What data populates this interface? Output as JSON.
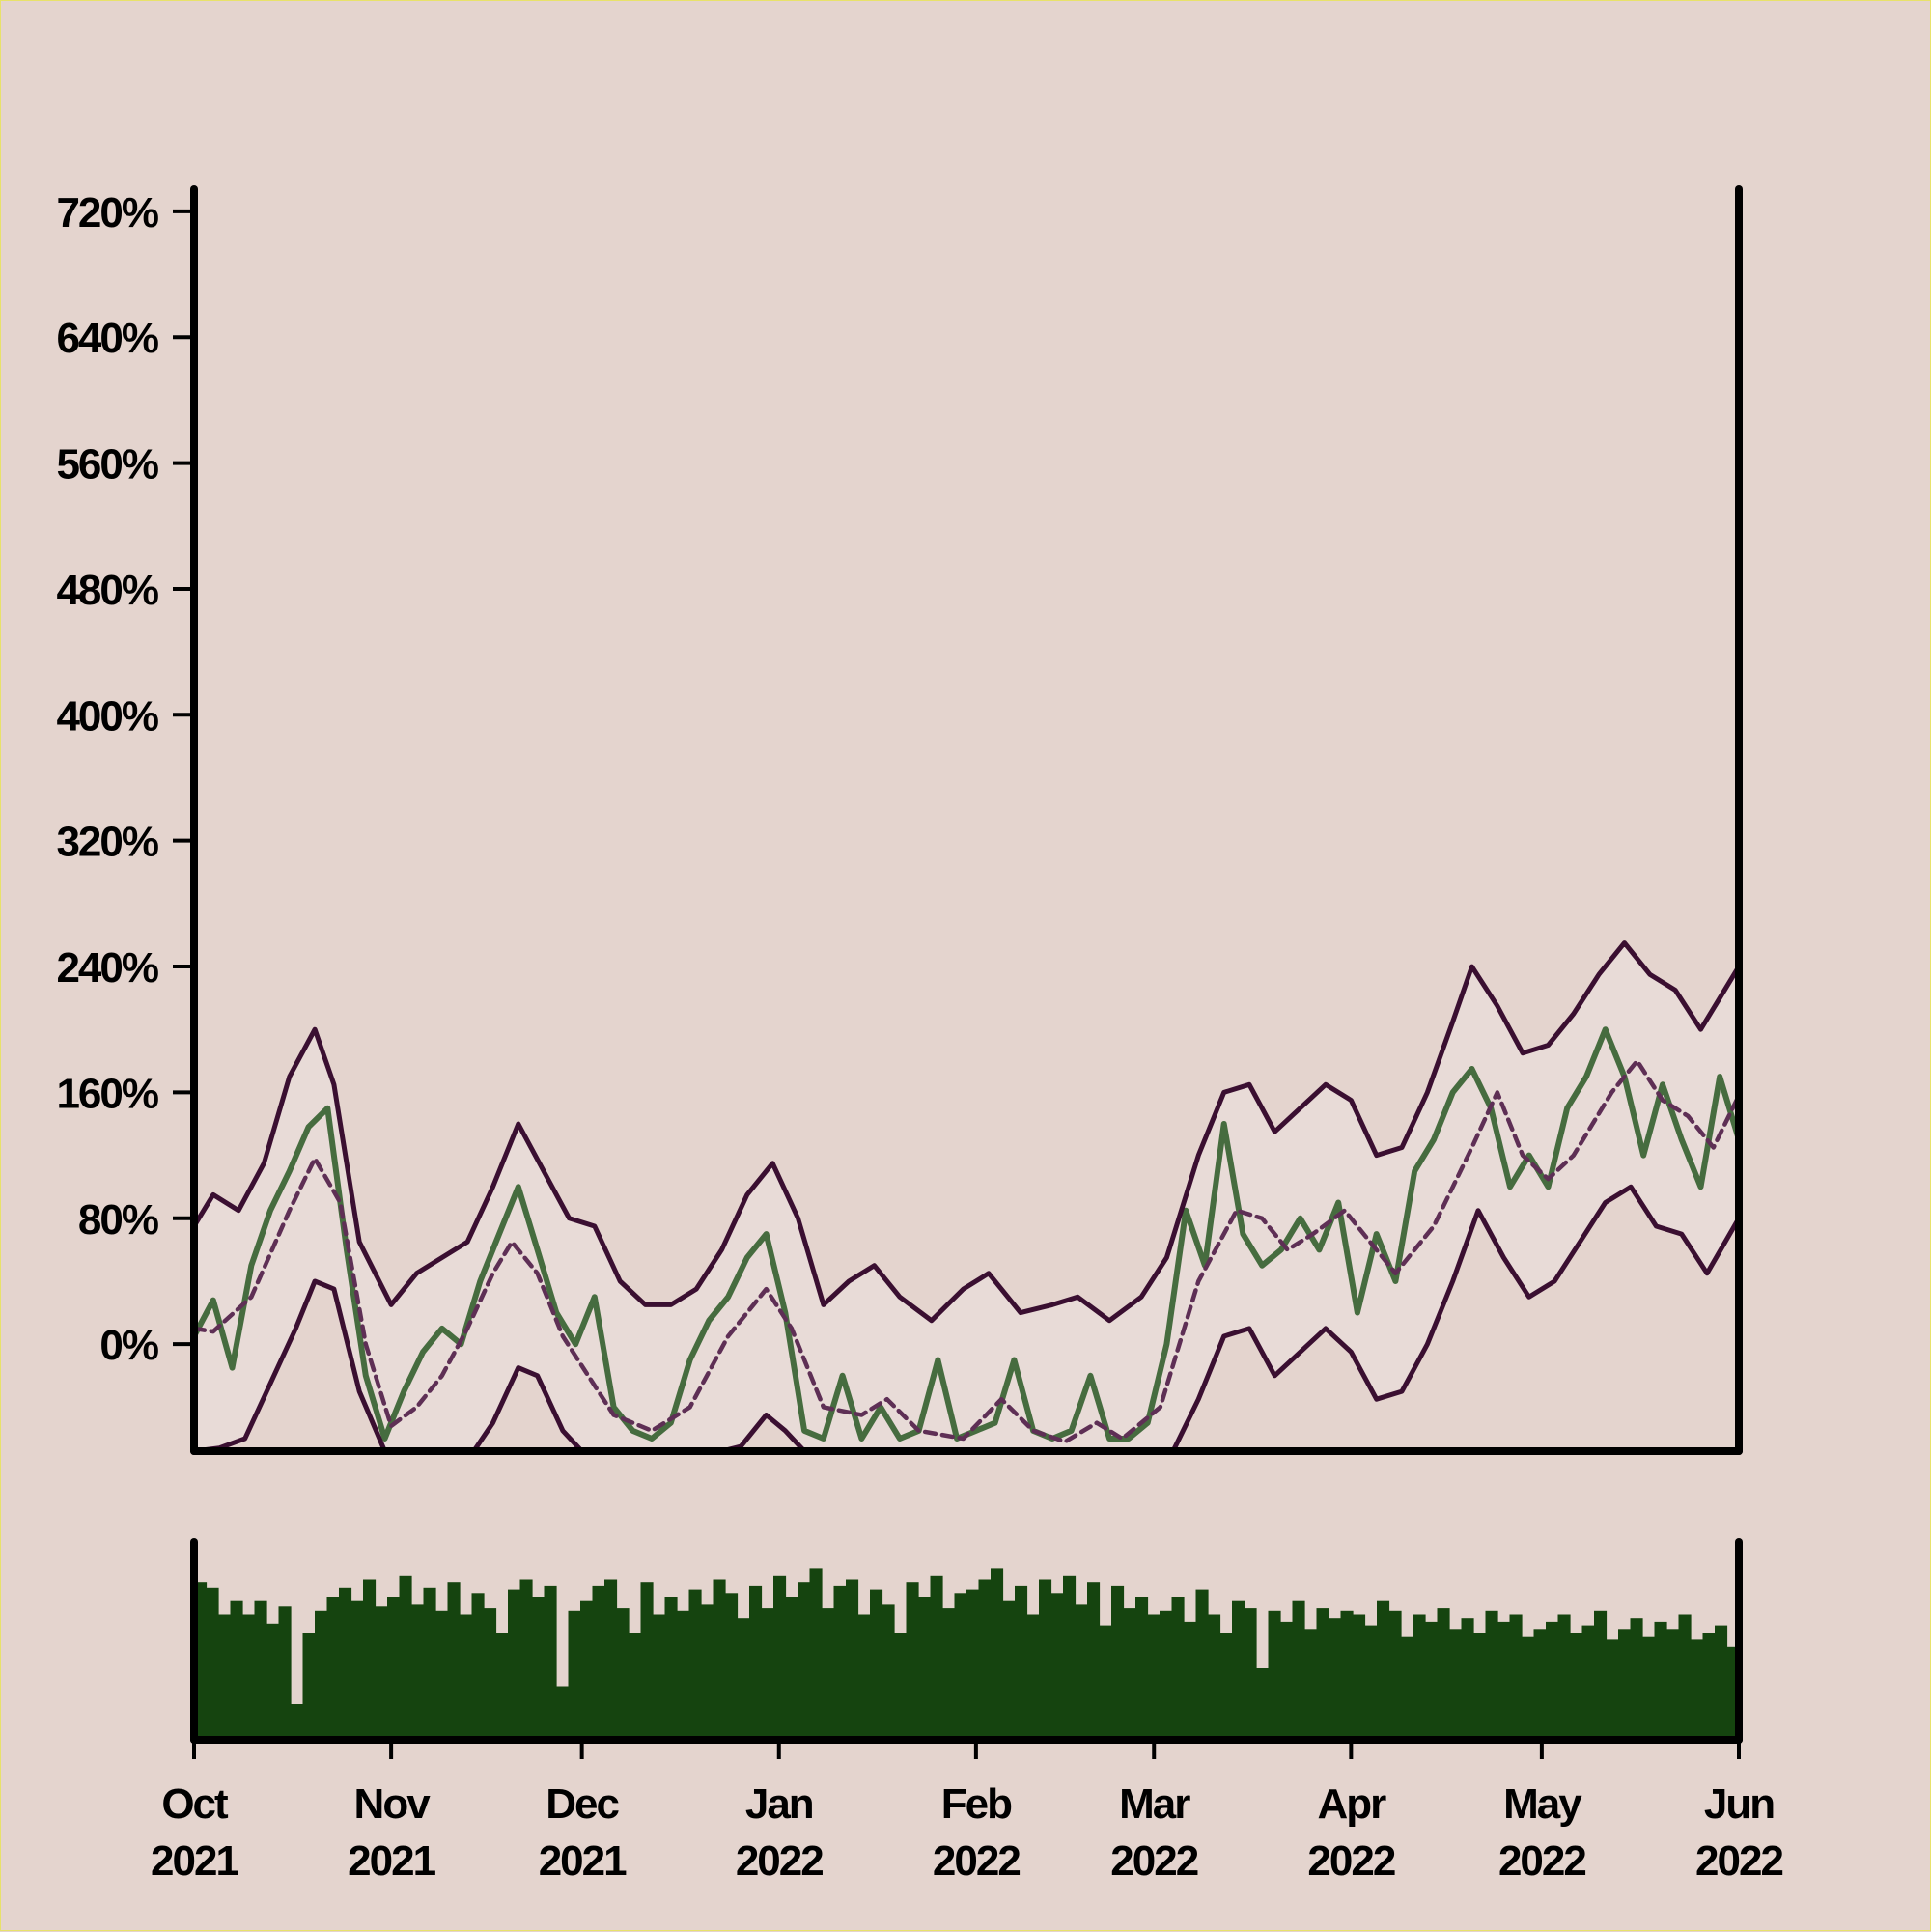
{
  "chart_data": {
    "type": "line",
    "title": "",
    "xlabel": "",
    "ylabel": "",
    "x_tick_labels": [
      [
        "Oct",
        "2021"
      ],
      [
        "Nov",
        "2021"
      ],
      [
        "Dec",
        "2021"
      ],
      [
        "Jan",
        "2022"
      ],
      [
        "Feb",
        "2022"
      ],
      [
        "Mar",
        "2022"
      ],
      [
        "Apr",
        "2022"
      ],
      [
        "May",
        "2022"
      ],
      [
        "Jun",
        "2022"
      ]
    ],
    "x_ticks": [
      "2021-10-01",
      "2021-11-01",
      "2021-12-01",
      "2022-01-01",
      "2022-02-01",
      "2022-03-01",
      "2022-04-01",
      "2022-05-01",
      "2022-06-01"
    ],
    "xlim": [
      "2021-10-01",
      "2022-06-01"
    ],
    "y_tick_labels": [
      "0%",
      "80%",
      "160%",
      "240%",
      "320%",
      "400%",
      "480%",
      "560%",
      "640%",
      "720%"
    ],
    "y_ticks": [
      0,
      80,
      160,
      240,
      320,
      400,
      480,
      560,
      640,
      720
    ],
    "ylim": [
      -68,
      734
    ],
    "grid": false,
    "legend": "none",
    "colors": {
      "background": "#e4d4ce",
      "band_fill": "#e8dbd7",
      "band_line": "#3a0f31",
      "moving_average": "#5e2f55",
      "price_line": "#466c3f",
      "volume_bars": "#15440f",
      "axis": "#000000"
    },
    "series": [
      {
        "role": "price",
        "style": "solid",
        "points": [
          [
            "2021-10-01",
            5
          ],
          [
            "2021-10-04",
            28
          ],
          [
            "2021-10-07",
            -15
          ],
          [
            "2021-10-10",
            50
          ],
          [
            "2021-10-13",
            85
          ],
          [
            "2021-10-16",
            110
          ],
          [
            "2021-10-19",
            138
          ],
          [
            "2021-10-22",
            150
          ],
          [
            "2021-10-25",
            60
          ],
          [
            "2021-10-28",
            -20
          ],
          [
            "2021-10-31",
            -60
          ],
          [
            "2021-11-03",
            -30
          ],
          [
            "2021-11-06",
            -5
          ],
          [
            "2021-11-09",
            10
          ],
          [
            "2021-11-12",
            0
          ],
          [
            "2021-11-15",
            40
          ],
          [
            "2021-11-18",
            70
          ],
          [
            "2021-11-21",
            100
          ],
          [
            "2021-11-24",
            60
          ],
          [
            "2021-11-27",
            20
          ],
          [
            "2021-11-30",
            0
          ],
          [
            "2021-12-03",
            30
          ],
          [
            "2021-12-06",
            -40
          ],
          [
            "2021-12-09",
            -55
          ],
          [
            "2021-12-12",
            -60
          ],
          [
            "2021-12-15",
            -50
          ],
          [
            "2021-12-18",
            -10
          ],
          [
            "2021-12-21",
            15
          ],
          [
            "2021-12-24",
            30
          ],
          [
            "2021-12-27",
            55
          ],
          [
            "2021-12-30",
            70
          ],
          [
            "2022-01-02",
            20
          ],
          [
            "2022-01-05",
            -55
          ],
          [
            "2022-01-08",
            -60
          ],
          [
            "2022-01-11",
            -20
          ],
          [
            "2022-01-14",
            -60
          ],
          [
            "2022-01-17",
            -40
          ],
          [
            "2022-01-20",
            -60
          ],
          [
            "2022-01-23",
            -55
          ],
          [
            "2022-01-26",
            -10
          ],
          [
            "2022-01-29",
            -60
          ],
          [
            "2022-02-01",
            -55
          ],
          [
            "2022-02-04",
            -50
          ],
          [
            "2022-02-07",
            -10
          ],
          [
            "2022-02-10",
            -55
          ],
          [
            "2022-02-13",
            -60
          ],
          [
            "2022-02-16",
            -55
          ],
          [
            "2022-02-19",
            -20
          ],
          [
            "2022-02-22",
            -60
          ],
          [
            "2022-02-25",
            -60
          ],
          [
            "2022-02-28",
            -50
          ],
          [
            "2022-03-03",
            0
          ],
          [
            "2022-03-06",
            85
          ],
          [
            "2022-03-09",
            50
          ],
          [
            "2022-03-12",
            140
          ],
          [
            "2022-03-15",
            70
          ],
          [
            "2022-03-18",
            50
          ],
          [
            "2022-03-21",
            60
          ],
          [
            "2022-03-24",
            80
          ],
          [
            "2022-03-27",
            60
          ],
          [
            "2022-03-30",
            90
          ],
          [
            "2022-04-02",
            20
          ],
          [
            "2022-04-05",
            70
          ],
          [
            "2022-04-08",
            40
          ],
          [
            "2022-04-11",
            110
          ],
          [
            "2022-04-14",
            130
          ],
          [
            "2022-04-17",
            160
          ],
          [
            "2022-04-20",
            175
          ],
          [
            "2022-04-23",
            150
          ],
          [
            "2022-04-26",
            100
          ],
          [
            "2022-04-29",
            120
          ],
          [
            "2022-05-02",
            100
          ],
          [
            "2022-05-05",
            150
          ],
          [
            "2022-05-08",
            170
          ],
          [
            "2022-05-11",
            200
          ],
          [
            "2022-05-14",
            170
          ],
          [
            "2022-05-17",
            120
          ],
          [
            "2022-05-20",
            165
          ],
          [
            "2022-05-23",
            130
          ],
          [
            "2022-05-26",
            100
          ],
          [
            "2022-05-29",
            170
          ],
          [
            "2022-06-01",
            130
          ]
        ]
      },
      {
        "role": "moving-average",
        "style": "dashed",
        "points": [
          [
            "2021-10-01",
            10
          ],
          [
            "2021-10-04",
            8
          ],
          [
            "2021-10-10",
            30
          ],
          [
            "2021-10-16",
            85
          ],
          [
            "2021-10-20",
            118
          ],
          [
            "2021-10-24",
            90
          ],
          [
            "2021-10-28",
            0
          ],
          [
            "2021-11-01",
            -52
          ],
          [
            "2021-11-05",
            -40
          ],
          [
            "2021-11-09",
            -20
          ],
          [
            "2021-11-13",
            10
          ],
          [
            "2021-11-17",
            45
          ],
          [
            "2021-11-20",
            65
          ],
          [
            "2021-11-24",
            45
          ],
          [
            "2021-11-28",
            5
          ],
          [
            "2021-12-02",
            -20
          ],
          [
            "2021-12-06",
            -45
          ],
          [
            "2021-12-12",
            -55
          ],
          [
            "2021-12-18",
            -40
          ],
          [
            "2021-12-24",
            5
          ],
          [
            "2021-12-30",
            35
          ],
          [
            "2022-01-03",
            10
          ],
          [
            "2022-01-08",
            -40
          ],
          [
            "2022-01-14",
            -45
          ],
          [
            "2022-01-18",
            -35
          ],
          [
            "2022-01-23",
            -55
          ],
          [
            "2022-01-30",
            -60
          ],
          [
            "2022-02-05",
            -35
          ],
          [
            "2022-02-10",
            -55
          ],
          [
            "2022-02-15",
            -62
          ],
          [
            "2022-02-20",
            -50
          ],
          [
            "2022-02-24",
            -60
          ],
          [
            "2022-03-02",
            -40
          ],
          [
            "2022-03-08",
            40
          ],
          [
            "2022-03-14",
            85
          ],
          [
            "2022-03-18",
            80
          ],
          [
            "2022-03-22",
            60
          ],
          [
            "2022-03-26",
            70
          ],
          [
            "2022-03-31",
            85
          ],
          [
            "2022-04-04",
            65
          ],
          [
            "2022-04-08",
            45
          ],
          [
            "2022-04-14",
            75
          ],
          [
            "2022-04-20",
            125
          ],
          [
            "2022-04-24",
            160
          ],
          [
            "2022-04-28",
            120
          ],
          [
            "2022-05-02",
            105
          ],
          [
            "2022-05-06",
            120
          ],
          [
            "2022-05-12",
            160
          ],
          [
            "2022-05-16",
            180
          ],
          [
            "2022-05-20",
            155
          ],
          [
            "2022-05-24",
            145
          ],
          [
            "2022-05-28",
            125
          ],
          [
            "2022-06-01",
            158
          ]
        ]
      },
      {
        "role": "upper-band",
        "style": "solid",
        "points": [
          [
            "2021-10-01",
            75
          ],
          [
            "2021-10-04",
            95
          ],
          [
            "2021-10-08",
            85
          ],
          [
            "2021-10-12",
            115
          ],
          [
            "2021-10-16",
            170
          ],
          [
            "2021-10-20",
            200
          ],
          [
            "2021-10-23",
            165
          ],
          [
            "2021-10-27",
            65
          ],
          [
            "2021-11-01",
            25
          ],
          [
            "2021-11-05",
            45
          ],
          [
            "2021-11-09",
            55
          ],
          [
            "2021-11-13",
            65
          ],
          [
            "2021-11-17",
            100
          ],
          [
            "2021-11-21",
            140
          ],
          [
            "2021-11-25",
            110
          ],
          [
            "2021-11-29",
            80
          ],
          [
            "2021-12-03",
            75
          ],
          [
            "2021-12-07",
            40
          ],
          [
            "2021-12-11",
            25
          ],
          [
            "2021-12-15",
            25
          ],
          [
            "2021-12-19",
            35
          ],
          [
            "2021-12-23",
            60
          ],
          [
            "2021-12-27",
            95
          ],
          [
            "2021-12-31",
            115
          ],
          [
            "2022-01-04",
            80
          ],
          [
            "2022-01-08",
            25
          ],
          [
            "2022-01-12",
            40
          ],
          [
            "2022-01-16",
            50
          ],
          [
            "2022-01-20",
            30
          ],
          [
            "2022-01-25",
            15
          ],
          [
            "2022-01-30",
            35
          ],
          [
            "2022-02-03",
            45
          ],
          [
            "2022-02-08",
            20
          ],
          [
            "2022-02-13",
            25
          ],
          [
            "2022-02-17",
            30
          ],
          [
            "2022-02-22",
            15
          ],
          [
            "2022-02-27",
            30
          ],
          [
            "2022-03-03",
            55
          ],
          [
            "2022-03-08",
            120
          ],
          [
            "2022-03-12",
            160
          ],
          [
            "2022-03-16",
            165
          ],
          [
            "2022-03-20",
            135
          ],
          [
            "2022-03-24",
            150
          ],
          [
            "2022-03-28",
            165
          ],
          [
            "2022-04-01",
            155
          ],
          [
            "2022-04-05",
            120
          ],
          [
            "2022-04-09",
            125
          ],
          [
            "2022-04-13",
            160
          ],
          [
            "2022-04-17",
            205
          ],
          [
            "2022-04-20",
            240
          ],
          [
            "2022-04-24",
            215
          ],
          [
            "2022-04-28",
            185
          ],
          [
            "2022-05-02",
            190
          ],
          [
            "2022-05-06",
            210
          ],
          [
            "2022-05-10",
            235
          ],
          [
            "2022-05-14",
            255
          ],
          [
            "2022-05-18",
            235
          ],
          [
            "2022-05-22",
            225
          ],
          [
            "2022-05-26",
            200
          ],
          [
            "2022-06-01",
            240
          ]
        ]
      },
      {
        "role": "lower-band",
        "style": "solid",
        "points": [
          [
            "2021-10-01",
            -70
          ],
          [
            "2021-10-05",
            -66
          ],
          [
            "2021-10-09",
            -60
          ],
          [
            "2021-10-13",
            -25
          ],
          [
            "2021-10-17",
            10
          ],
          [
            "2021-10-20",
            40
          ],
          [
            "2021-10-23",
            35
          ],
          [
            "2021-10-27",
            -30
          ],
          [
            "2021-10-31",
            -75
          ],
          [
            "2021-11-14",
            -75
          ],
          [
            "2021-11-17",
            -50
          ],
          [
            "2021-11-21",
            -15
          ],
          [
            "2021-11-24",
            -20
          ],
          [
            "2021-11-28",
            -55
          ],
          [
            "2021-12-01",
            -75
          ],
          [
            "2021-12-23",
            -75
          ],
          [
            "2021-12-26",
            -65
          ],
          [
            "2021-12-30",
            -45
          ],
          [
            "2022-01-02",
            -55
          ],
          [
            "2022-01-05",
            -75
          ],
          [
            "2022-03-04",
            -75
          ],
          [
            "2022-03-08",
            -35
          ],
          [
            "2022-03-12",
            5
          ],
          [
            "2022-03-16",
            10
          ],
          [
            "2022-03-20",
            -20
          ],
          [
            "2022-03-24",
            -5
          ],
          [
            "2022-03-28",
            10
          ],
          [
            "2022-04-01",
            -5
          ],
          [
            "2022-04-05",
            -35
          ],
          [
            "2022-04-09",
            -30
          ],
          [
            "2022-04-13",
            0
          ],
          [
            "2022-04-17",
            40
          ],
          [
            "2022-04-21",
            85
          ],
          [
            "2022-04-25",
            55
          ],
          [
            "2022-04-29",
            30
          ],
          [
            "2022-05-03",
            40
          ],
          [
            "2022-05-07",
            65
          ],
          [
            "2022-05-11",
            90
          ],
          [
            "2022-05-15",
            100
          ],
          [
            "2022-05-19",
            75
          ],
          [
            "2022-05-23",
            70
          ],
          [
            "2022-05-27",
            45
          ],
          [
            "2022-06-01",
            80
          ]
        ]
      }
    ],
    "volume": {
      "type": "bar",
      "relative_values_by_month": [
        [
          0.88,
          0.85,
          0.7,
          0.78,
          0.7,
          0.78,
          0.65,
          0.75,
          0.2,
          0.6,
          0.72,
          0.8,
          0.85,
          0.78,
          0.9,
          0.75
        ],
        [
          0.8,
          0.92,
          0.76,
          0.85,
          0.72,
          0.88,
          0.7,
          0.82,
          0.74,
          0.6,
          0.84,
          0.9,
          0.8,
          0.86,
          0.3,
          0.72
        ],
        [
          0.78,
          0.86,
          0.9,
          0.74,
          0.6,
          0.88,
          0.7,
          0.8,
          0.72,
          0.84,
          0.76,
          0.9,
          0.82,
          0.68,
          0.86,
          0.74
        ],
        [
          0.92,
          0.8,
          0.88,
          0.96,
          0.74,
          0.86,
          0.9,
          0.7,
          0.84,
          0.76,
          0.6,
          0.88,
          0.8,
          0.92,
          0.74,
          0.82
        ],
        [
          0.84,
          0.9,
          0.96,
          0.78,
          0.86,
          0.7,
          0.9,
          0.82,
          0.92,
          0.76,
          0.88,
          0.64,
          0.86,
          0.74,
          0.8,
          0.7
        ],
        [
          0.72,
          0.8,
          0.66,
          0.84,
          0.7,
          0.6,
          0.78,
          0.74,
          0.4,
          0.72,
          0.66,
          0.78,
          0.62,
          0.74,
          0.68,
          0.72
        ],
        [
          0.7,
          0.64,
          0.78,
          0.72,
          0.58,
          0.7,
          0.66,
          0.74,
          0.62,
          0.68,
          0.6,
          0.72,
          0.66,
          0.7,
          0.58,
          0.62
        ],
        [
          0.66,
          0.7,
          0.6,
          0.64,
          0.72,
          0.56,
          0.62,
          0.68,
          0.58,
          0.66,
          0.62,
          0.7,
          0.56,
          0.6,
          0.64,
          0.52
        ]
      ]
    }
  }
}
